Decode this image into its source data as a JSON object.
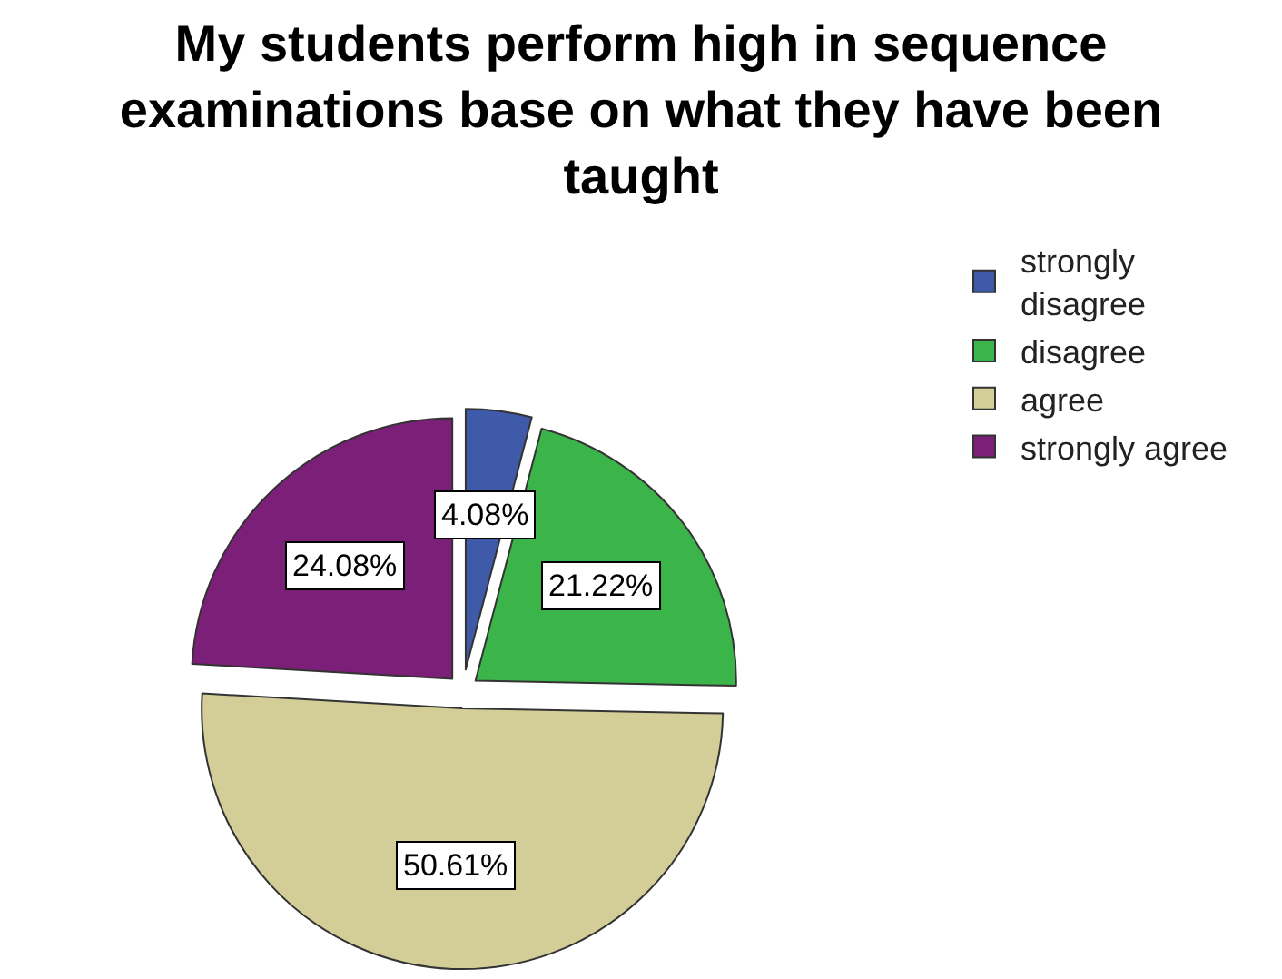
{
  "chart_data": {
    "type": "pie",
    "title": "My students perform high in sequence examinations base on what they have been taught",
    "categories": [
      "strongly disagree",
      "disagree",
      "agree",
      "strongly agree"
    ],
    "values": [
      4.08,
      21.22,
      50.61,
      24.08
    ],
    "colors": [
      "#3f5aa8",
      "#3bb44a",
      "#d3ce97",
      "#7b1f79"
    ],
    "value_labels": [
      "4.08%",
      "21.22%",
      "50.61%",
      "24.08%"
    ],
    "legend": "top right"
  }
}
